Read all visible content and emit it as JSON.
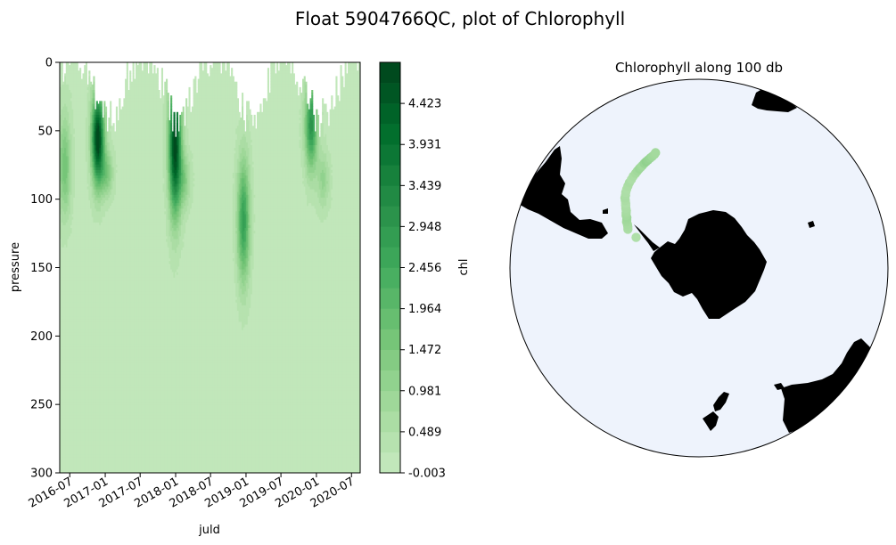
{
  "figure_title": "Float 5904766QC, plot of Chlorophyll",
  "chart_data": [
    {
      "type": "heatmap",
      "subtype": "filled-contour",
      "title": "",
      "xlabel": "juld",
      "ylabel": "pressure",
      "x_ticks": [
        "2016-07",
        "2017-01",
        "2017-07",
        "2018-01",
        "2018-07",
        "2019-01",
        "2019-07",
        "2020-01",
        "2020-07"
      ],
      "xlim": [
        "2016-05-10",
        "2020-08-15"
      ],
      "y_ticks": [
        0,
        50,
        100,
        150,
        200,
        250,
        300
      ],
      "ylim": [
        300,
        0
      ],
      "y_inverted": true,
      "colorbar": {
        "label": "chl",
        "colormap": "Greens",
        "ticks": [
          "-0.003",
          "0.489",
          "0.981",
          "1.472",
          "1.964",
          "2.456",
          "2.948",
          "3.439",
          "3.931",
          "4.423"
        ],
        "range": [
          -0.003,
          4.915
        ],
        "levels": 20
      },
      "blooms": [
        {
          "date": "2016-06-01",
          "depth_top": 30,
          "depth_bottom": 120,
          "peak_depth": 75,
          "peak_value": 1.5
        },
        {
          "date": "2016-11-20",
          "depth_top": 30,
          "depth_bottom": 110,
          "peak_depth": 55,
          "peak_value": 4.9
        },
        {
          "date": "2017-01-05",
          "depth_top": 60,
          "depth_bottom": 100,
          "peak_depth": 80,
          "peak_value": 1.3
        },
        {
          "date": "2017-12-25",
          "depth_top": 0,
          "depth_bottom": 120,
          "peak_depth": 60,
          "peak_value": 4.8
        },
        {
          "date": "2018-02-10",
          "depth_top": 60,
          "depth_bottom": 110,
          "peak_depth": 85,
          "peak_value": 1.1
        },
        {
          "date": "2018-12-15",
          "depth_top": 80,
          "depth_bottom": 190,
          "peak_depth": 115,
          "peak_value": 2.6
        },
        {
          "date": "2019-12-01",
          "depth_top": 30,
          "depth_bottom": 110,
          "peak_depth": 45,
          "peak_value": 2.9
        },
        {
          "date": "2020-02-01",
          "depth_top": 60,
          "depth_bottom": 110,
          "peak_depth": 85,
          "peak_value": 0.9
        }
      ]
    },
    {
      "type": "scatter",
      "subtype": "map-south-polar-stereographic",
      "title": "Chlorophyll along 100 db",
      "colormap": "Greens",
      "ocean_color": "#eef3fc",
      "land_color": "#000000",
      "points": [
        [
          -65.9,
          -64.0,
          0.27
        ],
        [
          -62.2,
          -61.3,
          0.3
        ],
        [
          -61.8,
          -59.9,
          0.32
        ],
        [
          -61.3,
          -58.6,
          0.34
        ],
        [
          -60.6,
          -57.4,
          0.36
        ],
        [
          -60.3,
          -56.3,
          0.38
        ],
        [
          -59.9,
          -55.0,
          0.4
        ],
        [
          -59.3,
          -54.1,
          0.37
        ],
        [
          -58.8,
          -52.8,
          0.35
        ],
        [
          -58.4,
          -51.7,
          0.33
        ],
        [
          -57.8,
          -50.7,
          0.31
        ],
        [
          -57.2,
          -49.5,
          0.3
        ],
        [
          -56.7,
          -48.5,
          0.28
        ],
        [
          -56.0,
          -47.4,
          0.3
        ],
        [
          -55.4,
          -46.5,
          0.32
        ],
        [
          -54.9,
          -45.2,
          0.31
        ],
        [
          -54.3,
          -44.0,
          0.29
        ],
        [
          -53.8,
          -42.5,
          0.28
        ],
        [
          -53.3,
          -40.9,
          0.3
        ],
        [
          -52.8,
          -39.2,
          0.32
        ],
        [
          -52.4,
          -37.3,
          0.29
        ],
        [
          -51.9,
          -35.5,
          0.31
        ],
        [
          -51.6,
          -33.8,
          0.35
        ],
        [
          -51.3,
          -32.4,
          0.38
        ],
        [
          -51.0,
          -31.0,
          0.42
        ],
        [
          -50.8,
          -29.9,
          0.4
        ],
        [
          -50.6,
          -28.9,
          0.37
        ],
        [
          -50.3,
          -27.6,
          0.45
        ],
        [
          -50.1,
          -26.4,
          0.5
        ],
        [
          -49.9,
          -25.2,
          0.47
        ],
        [
          -49.6,
          -23.9,
          0.44
        ],
        [
          -49.4,
          -22.7,
          0.4
        ],
        [
          -49.1,
          -21.4,
          0.38
        ],
        [
          -48.7,
          -20.6,
          0.36
        ]
      ]
    }
  ]
}
